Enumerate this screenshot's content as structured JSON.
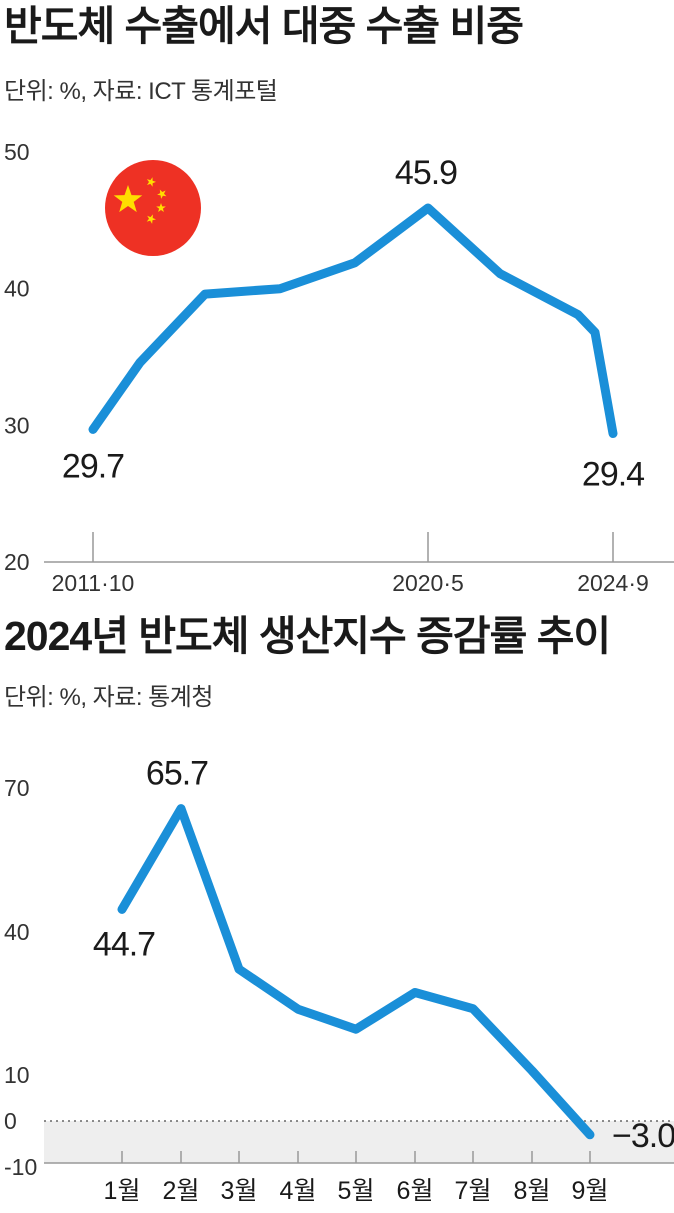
{
  "chart1": {
    "title": "반도체 수출에서 대중 수출 비중",
    "subtitle": "단위: %, 자료: ICT 통계포털",
    "icon": "china-flag-icon",
    "colors": {
      "line": "#1a8fd8",
      "flag_red": "#ee3124",
      "flag_star": "#ffde00"
    },
    "chart_data": {
      "type": "line",
      "title": "반도체 수출에서 대중 수출 비중",
      "ylim": [
        20,
        50
      ],
      "yticks": [
        50,
        40,
        30,
        20
      ],
      "x_tick_labels": [
        "2011·10",
        "2020·5",
        "2024·9"
      ],
      "series": [
        {
          "values": [
            29.7,
            34.6,
            39.6,
            40.0,
            41.9,
            45.9,
            41.1,
            38.1,
            36.8,
            29.4
          ]
        }
      ],
      "x_ticks_at_point": [
        0,
        5,
        9
      ],
      "data_labels": [
        {
          "point": 0,
          "text": "29.7"
        },
        {
          "point": 5,
          "text": "45.9"
        },
        {
          "point": 9,
          "text": "29.4"
        }
      ],
      "grid": false
    }
  },
  "chart2": {
    "title": "2024년 반도체 생산지수 증감률 추이",
    "subtitle": "단위: %, 자료: 통계청",
    "colors": {
      "line": "#1a8fd8",
      "negative_band": "#eeeeee"
    },
    "chart_data": {
      "type": "line",
      "title": "2024년 반도체 생산지수 증감률 추이",
      "categories": [
        "1월",
        "2월",
        "3월",
        "4월",
        "5월",
        "6월",
        "7월",
        "8월",
        "9월"
      ],
      "yticks": [
        70,
        40,
        10,
        0,
        -10
      ],
      "series": [
        {
          "values": [
            44.7,
            65.7,
            32.2,
            23.8,
            19.6,
            27.3,
            23.9,
            10.9,
            -3.0
          ]
        }
      ],
      "data_labels": [
        {
          "point": 0,
          "text": "44.7"
        },
        {
          "point": 1,
          "text": "65.7"
        },
        {
          "point": 8,
          "text": "−3.0"
        }
      ],
      "zero_line": "dotted",
      "grid": false
    }
  }
}
